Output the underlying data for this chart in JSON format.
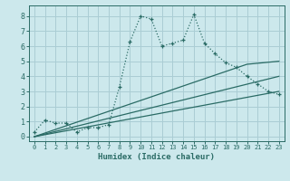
{
  "xlabel": "Humidex (Indice chaleur)",
  "xlim": [
    -0.5,
    23.5
  ],
  "ylim": [
    -0.3,
    8.7
  ],
  "xticks": [
    0,
    1,
    2,
    3,
    4,
    5,
    6,
    7,
    8,
    9,
    10,
    11,
    12,
    13,
    14,
    15,
    16,
    17,
    18,
    19,
    20,
    21,
    22,
    23
  ],
  "yticks": [
    0,
    1,
    2,
    3,
    4,
    5,
    6,
    7,
    8
  ],
  "bg_color": "#cce8ec",
  "line_color": "#2a6b65",
  "grid_color": "#aacdd4",
  "main_x": [
    0,
    1,
    2,
    3,
    4,
    5,
    6,
    7,
    8,
    9,
    10,
    11,
    12,
    13,
    14,
    15,
    16,
    17,
    18,
    19,
    20,
    21,
    22,
    23
  ],
  "main_y": [
    0.3,
    1.1,
    0.9,
    0.9,
    0.3,
    0.6,
    0.6,
    0.8,
    3.3,
    6.3,
    8.0,
    7.8,
    6.0,
    6.2,
    6.4,
    8.1,
    6.2,
    5.5,
    4.9,
    4.6,
    4.0,
    3.5,
    3.0,
    2.8
  ],
  "trend1_x": [
    0,
    23
  ],
  "trend1_y": [
    0.0,
    3.0
  ],
  "trend2_x": [
    0,
    23
  ],
  "trend2_y": [
    0.0,
    4.0
  ],
  "trend3_x": [
    0,
    20,
    23
  ],
  "trend3_y": [
    0.0,
    4.8,
    5.0
  ]
}
